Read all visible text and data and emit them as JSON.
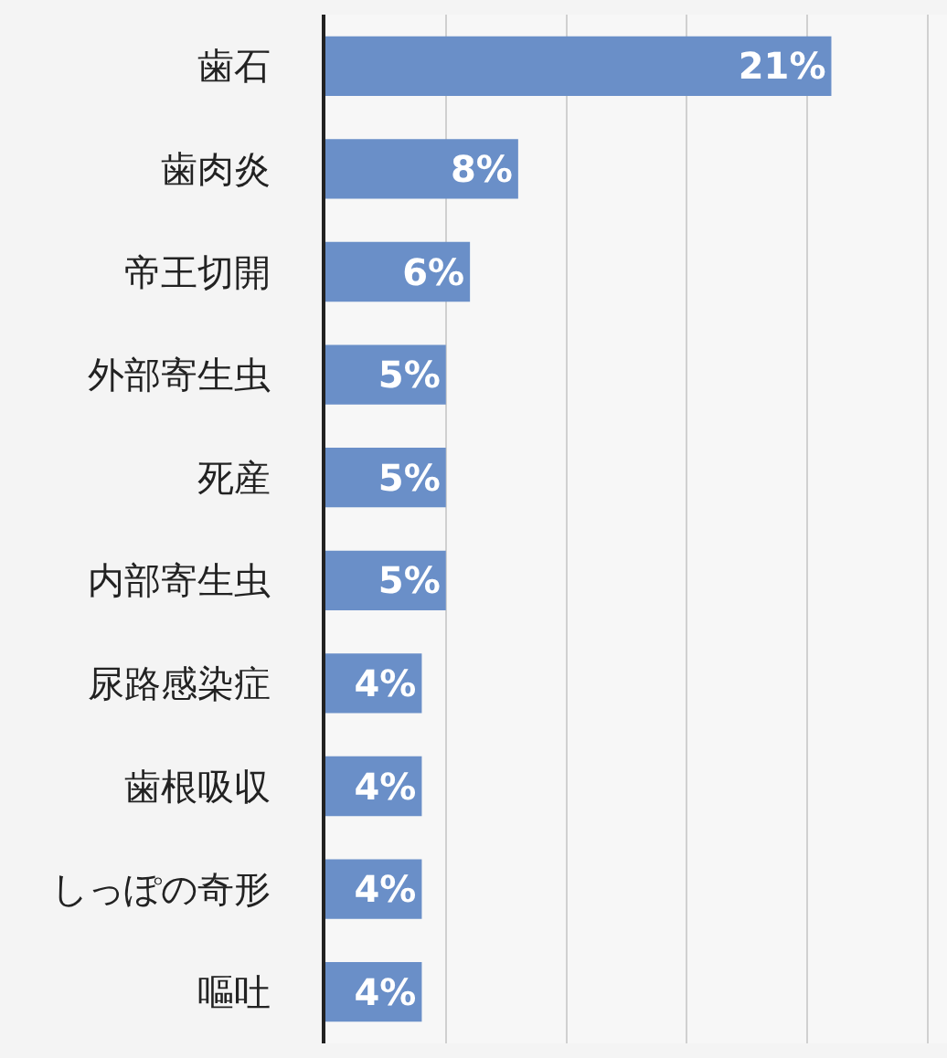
{
  "chart_data": {
    "type": "bar",
    "orientation": "horizontal",
    "categories": [
      "歯石",
      "歯肉炎",
      "帝王切開",
      "外部寄生虫",
      "死産",
      "内部寄生虫",
      "尿路感染症",
      "歯根吸収",
      "しっぽの奇形",
      "嘔吐"
    ],
    "values": [
      21,
      8,
      6,
      5,
      5,
      5,
      4,
      4,
      4,
      4
    ],
    "value_labels": [
      "21%",
      "8%",
      "6%",
      "5%",
      "5%",
      "5%",
      "4%",
      "4%",
      "4%",
      "4%"
    ],
    "color": "#6a8fc8",
    "xlim": [
      0,
      25.8
    ],
    "xticks": [
      {
        "value": 0,
        "label": null
      },
      {
        "value": 5,
        "label": null
      },
      {
        "value": 10,
        "label": null
      },
      {
        "value": 15,
        "label": null
      },
      {
        "value": 20,
        "label": null
      },
      {
        "value": 25,
        "label": null
      }
    ],
    "grid": "x",
    "tick_labels": "y",
    "legend": false
  }
}
